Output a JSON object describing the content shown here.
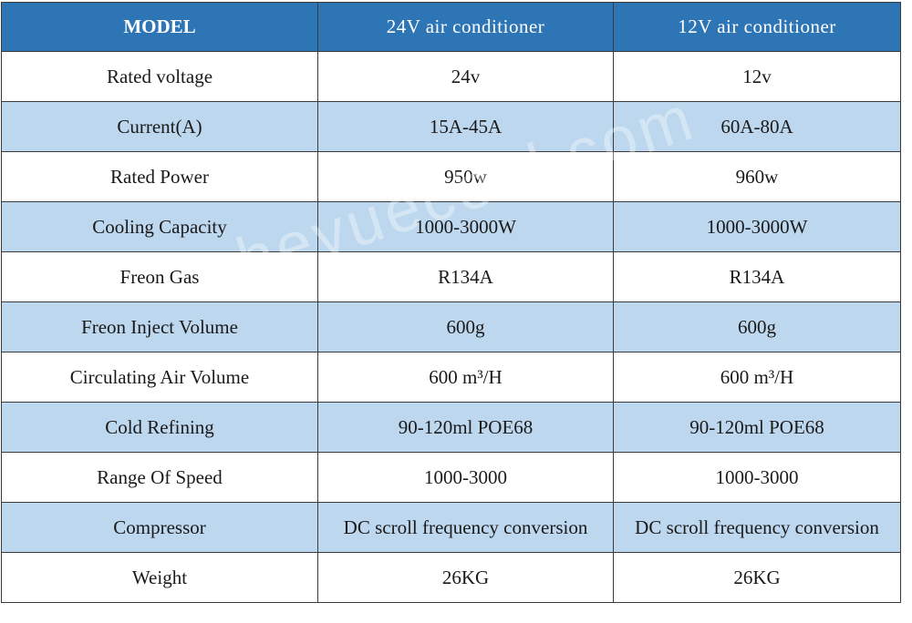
{
  "table": {
    "headers": [
      "MODEL",
      "24V air conditioner",
      "12V air conditioner"
    ],
    "rows": [
      [
        "Rated voltage",
        "24v",
        "12v"
      ],
      [
        "Current(A)",
        "15A-45A",
        "60A-80A"
      ],
      [
        "Rated Power",
        "950w",
        "960w"
      ],
      [
        "Cooling Capacity",
        "1000-3000W",
        "1000-3000W"
      ],
      [
        "Freon Gas",
        "R134A",
        "R134A"
      ],
      [
        "Freon Inject Volume",
        "600g",
        "600g"
      ],
      [
        "Circulating Air Volume",
        "600 m³/H",
        "600 m³/H"
      ],
      [
        "Cold Refining",
        "90-120ml POE68",
        "90-120ml POE68"
      ],
      [
        "Range Of  Speed",
        "1000-3000",
        "1000-3000"
      ],
      [
        "Compressor",
        "DC scroll frequency conversion",
        "DC scroll frequency conversion"
      ],
      [
        "Weight",
        "26KG",
        "26KG"
      ]
    ]
  },
  "colors": {
    "header_bg": "#2e75b6",
    "alt_row_bg": "#bdd7ee",
    "plain_row_bg": "#ffffff"
  },
  "watermark": "heyuecool.com"
}
